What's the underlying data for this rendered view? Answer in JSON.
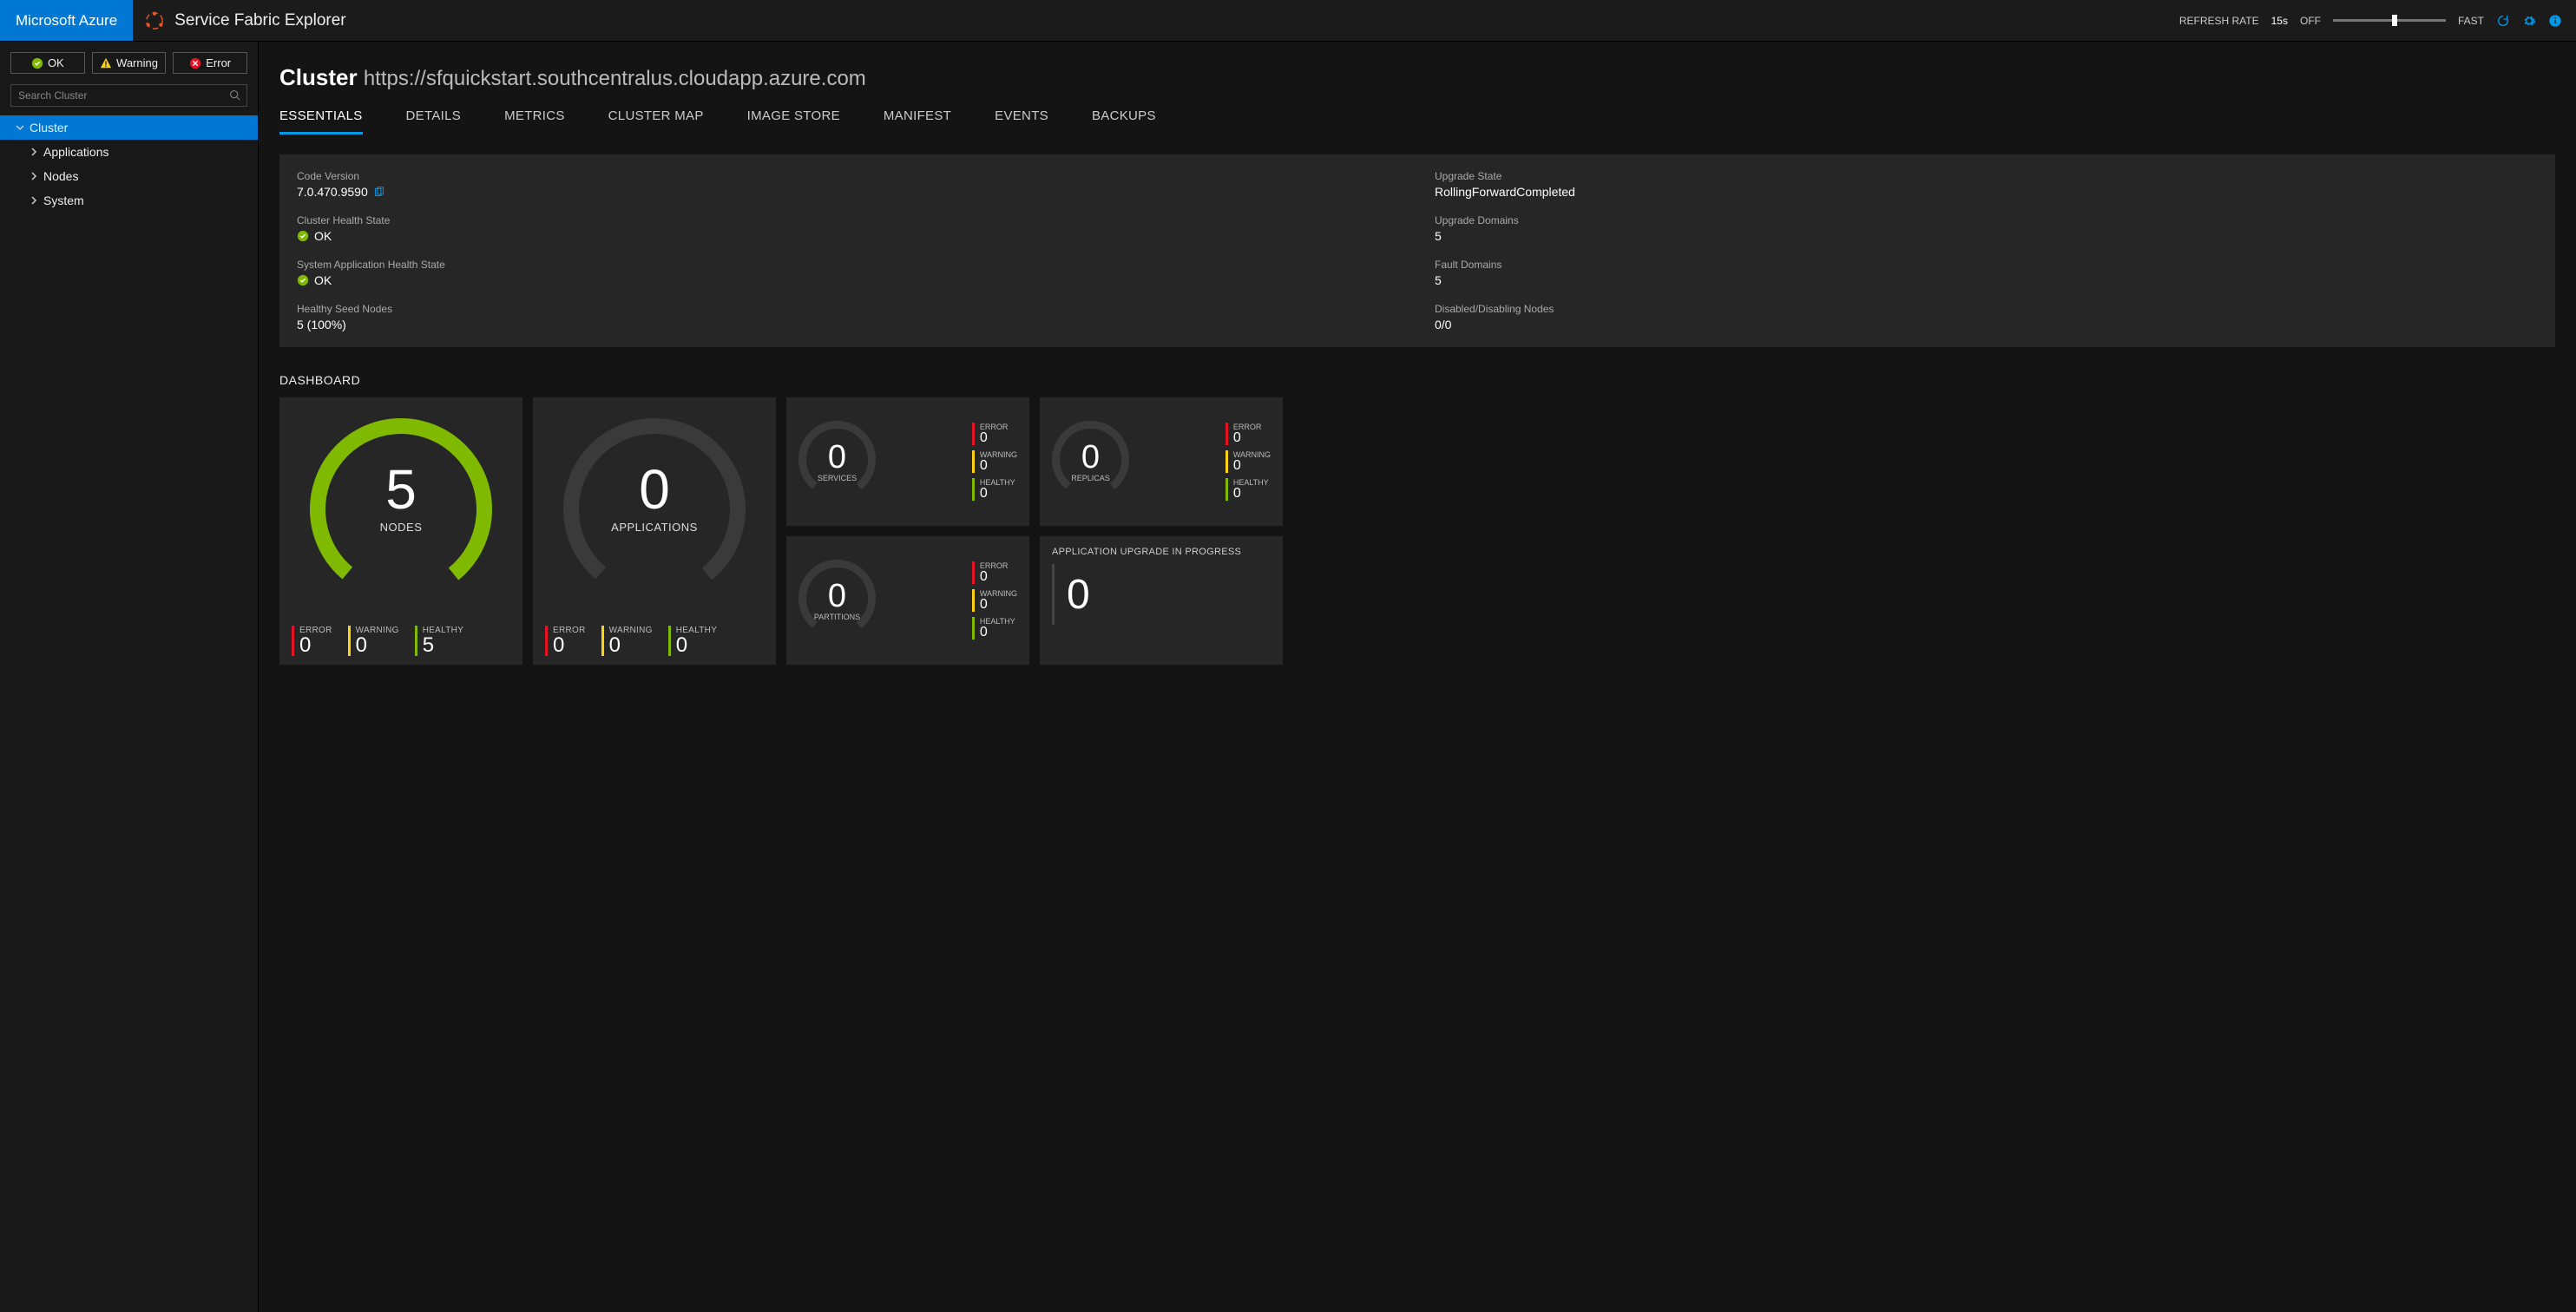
{
  "colors": {
    "accent": "#0078d4",
    "link": "#0099e6",
    "cardBg": "#262626",
    "bg": "#141414",
    "ok": "#7fba00",
    "warning": "#fcd116",
    "error": "#e81123",
    "ringEmpty": "#3a3a3a"
  },
  "header": {
    "azure": "Microsoft Azure",
    "appTitle": "Service Fabric Explorer",
    "refreshLabel": "REFRESH RATE",
    "refreshValue": "15s",
    "sliderOff": "OFF",
    "sliderFast": "FAST",
    "sliderPosPct": 52
  },
  "sidebar": {
    "filters": {
      "ok": "OK",
      "warning": "Warning",
      "error": "Error"
    },
    "searchPlaceholder": "Search Cluster",
    "tree": {
      "root": "Cluster",
      "children": [
        "Applications",
        "Nodes",
        "System"
      ]
    }
  },
  "page": {
    "titlePrefix": "Cluster",
    "titleUrl": "https://sfquickstart.southcentralus.cloudapp.azure.com"
  },
  "tabs": [
    "ESSENTIALS",
    "DETAILS",
    "METRICS",
    "CLUSTER MAP",
    "IMAGE STORE",
    "MANIFEST",
    "EVENTS",
    "BACKUPS"
  ],
  "activeTab": 0,
  "essentials": {
    "left": [
      {
        "label": "Code Version",
        "value": "7.0.470.9590",
        "copy": true
      },
      {
        "label": "Cluster Health State",
        "value": "OK",
        "status": "ok"
      },
      {
        "label": "System Application Health State",
        "value": "OK",
        "status": "ok"
      },
      {
        "label": "Healthy Seed Nodes",
        "value": "5 (100%)"
      }
    ],
    "right": [
      {
        "label": "Upgrade State",
        "value": "RollingForwardCompleted"
      },
      {
        "label": "Upgrade Domains",
        "value": "5"
      },
      {
        "label": "Fault Domains",
        "value": "5"
      },
      {
        "label": "Disabled/Disabling Nodes",
        "value": "0/0"
      }
    ]
  },
  "dashboard": {
    "title": "DASHBOARD",
    "bigCards": [
      {
        "label": "NODES",
        "total": 5,
        "error": 0,
        "warning": 0,
        "healthy": 5,
        "ringFillPct": 100,
        "ringColor": "#7fba00",
        "ringRadius": 96,
        "ringStroke": 18
      },
      {
        "label": "APPLICATIONS",
        "total": 0,
        "error": 0,
        "warning": 0,
        "healthy": 0,
        "ringFillPct": 0,
        "ringColor": "#7fba00",
        "ringRadius": 96,
        "ringStroke": 18
      }
    ],
    "smallCards": [
      {
        "label": "SERVICES",
        "total": 0,
        "error": 0,
        "warning": 0,
        "healthy": 0
      },
      {
        "label": "REPLICAS",
        "total": 0,
        "error": 0,
        "warning": 0,
        "healthy": 0
      },
      {
        "label": "PARTITIONS",
        "total": 0,
        "error": 0,
        "warning": 0,
        "healthy": 0
      }
    ],
    "upgradeCard": {
      "title": "APPLICATION UPGRADE IN PROGRESS",
      "value": 0
    },
    "smallRing": {
      "radius": 40,
      "stroke": 9
    },
    "legendLabels": {
      "error": "ERROR",
      "warning": "WARNING",
      "healthy": "HEALTHY"
    }
  }
}
